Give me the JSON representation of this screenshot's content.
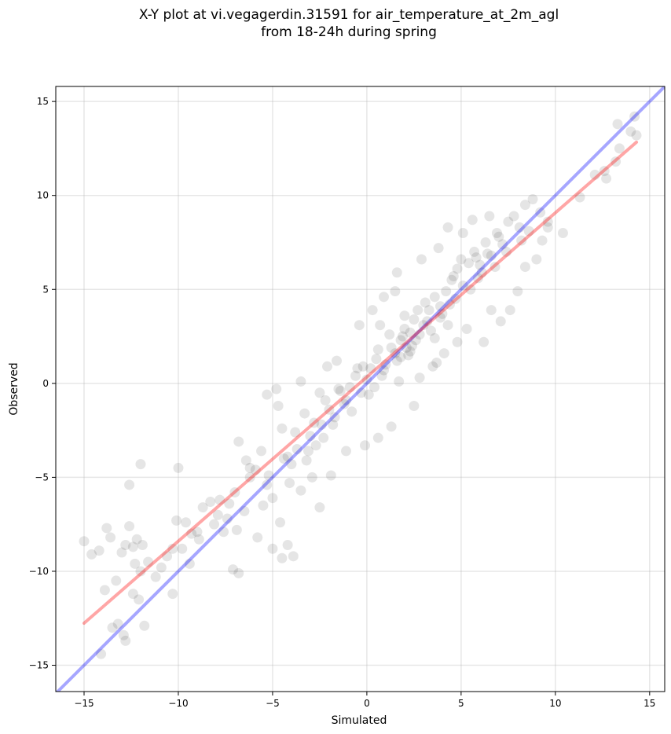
{
  "chart_data": {
    "type": "scatter",
    "title_line1": "X-Y plot at vi.vegagerdin.31591 for air_temperature_at_2m_agl",
    "title_line2": "from 18-24h during spring",
    "xlabel": "Simulated",
    "ylabel": "Observed",
    "xlim": [
      -16.5,
      15.8
    ],
    "ylim": [
      -16.4,
      15.8
    ],
    "xticks": [
      -15,
      -10,
      -5,
      0,
      5,
      10,
      15
    ],
    "yticks": [
      -15,
      -10,
      -5,
      0,
      5,
      10,
      15
    ],
    "xtick_labels": [
      "−15",
      "−10",
      "−5",
      "0",
      "5",
      "10",
      "15"
    ],
    "ytick_labels": [
      "−15",
      "−10",
      "−5",
      "0",
      "5",
      "10",
      "15"
    ],
    "grid": true,
    "point_color": "#000000",
    "points": [
      [
        -15.0,
        -8.4
      ],
      [
        -14.6,
        -9.1
      ],
      [
        -14.2,
        -8.9
      ],
      [
        -13.8,
        -7.7
      ],
      [
        -13.6,
        -8.2
      ],
      [
        -13.9,
        -11.0
      ],
      [
        -13.3,
        -10.5
      ],
      [
        -13.0,
        -9.0
      ],
      [
        -12.8,
        -8.6
      ],
      [
        -12.4,
        -8.7
      ],
      [
        -12.2,
        -8.3
      ],
      [
        -11.9,
        -8.6
      ],
      [
        -12.0,
        -4.3
      ],
      [
        -12.6,
        -5.4
      ],
      [
        -12.6,
        -7.6
      ],
      [
        -12.3,
        -9.6
      ],
      [
        -12.0,
        -10.0
      ],
      [
        -11.6,
        -9.5
      ],
      [
        -11.2,
        -10.3
      ],
      [
        -10.9,
        -9.8
      ],
      [
        -10.6,
        -9.2
      ],
      [
        -10.3,
        -8.8
      ],
      [
        -10.1,
        -7.3
      ],
      [
        -10.0,
        -4.5
      ],
      [
        -9.6,
        -7.4
      ],
      [
        -9.3,
        -8.0
      ],
      [
        -9.0,
        -7.9
      ],
      [
        -8.7,
        -6.6
      ],
      [
        -8.3,
        -6.3
      ],
      [
        -7.9,
        -7.0
      ],
      [
        -7.6,
        -7.9
      ],
      [
        -7.3,
        -6.4
      ],
      [
        -7.0,
        -5.8
      ],
      [
        -6.8,
        -3.1
      ],
      [
        -6.4,
        -4.1
      ],
      [
        -6.2,
        -5.0
      ],
      [
        -5.9,
        -4.6
      ],
      [
        -5.6,
        -3.6
      ],
      [
        -5.3,
        -5.4
      ],
      [
        -5.0,
        -6.1
      ],
      [
        -4.8,
        -0.3
      ],
      [
        -5.3,
        -0.6
      ],
      [
        -4.7,
        -1.2
      ],
      [
        -4.5,
        -2.4
      ],
      [
        -4.2,
        -3.9
      ],
      [
        -4.0,
        -4.3
      ],
      [
        -3.7,
        -3.5
      ],
      [
        -3.3,
        -1.6
      ],
      [
        -3.0,
        -2.8
      ],
      [
        -2.7,
        -3.3
      ],
      [
        -2.4,
        -2.2
      ],
      [
        -2.2,
        -0.9
      ],
      [
        -2.0,
        -1.4
      ],
      [
        -1.7,
        -1.8
      ],
      [
        -1.4,
        -0.4
      ],
      [
        -1.1,
        -0.9
      ],
      [
        -0.9,
        -0.2
      ],
      [
        -0.6,
        0.4
      ],
      [
        -0.3,
        -0.5
      ],
      [
        0.0,
        0.2
      ],
      [
        0.2,
        0.8
      ],
      [
        0.5,
        1.3
      ],
      [
        0.8,
        0.4
      ],
      [
        1.0,
        1.0
      ],
      [
        1.3,
        1.9
      ],
      [
        1.6,
        1.2
      ],
      [
        1.8,
        2.3
      ],
      [
        2.0,
        2.9
      ],
      [
        2.3,
        1.7
      ],
      [
        2.5,
        3.4
      ],
      [
        2.8,
        2.6
      ],
      [
        3.0,
        3.1
      ],
      [
        3.3,
        3.9
      ],
      [
        3.6,
        4.6
      ],
      [
        3.9,
        3.5
      ],
      [
        4.2,
        4.9
      ],
      [
        4.5,
        5.5
      ],
      [
        4.8,
        6.1
      ],
      [
        5.1,
        5.2
      ],
      [
        5.4,
        6.4
      ],
      [
        5.7,
        7.0
      ],
      [
        6.0,
        6.3
      ],
      [
        6.3,
        7.5
      ],
      [
        6.6,
        6.8
      ],
      [
        6.9,
        8.0
      ],
      [
        7.2,
        7.4
      ],
      [
        7.5,
        8.6
      ],
      [
        7.8,
        8.9
      ],
      [
        8.1,
        8.3
      ],
      [
        8.4,
        9.5
      ],
      [
        8.8,
        9.8
      ],
      [
        9.2,
        9.1
      ],
      [
        9.6,
        8.6
      ],
      [
        10.4,
        8.0
      ],
      [
        11.3,
        9.9
      ],
      [
        12.1,
        11.1
      ],
      [
        12.6,
        11.3
      ],
      [
        12.7,
        10.9
      ],
      [
        13.2,
        11.8
      ],
      [
        13.4,
        12.5
      ],
      [
        13.3,
        13.8
      ],
      [
        14.0,
        13.4
      ],
      [
        14.3,
        13.2
      ],
      [
        14.2,
        14.2
      ],
      [
        -13.2,
        -12.8
      ],
      [
        -12.9,
        -13.4
      ],
      [
        -13.5,
        -13.0
      ],
      [
        -14.1,
        -14.4
      ],
      [
        -12.8,
        -13.7
      ],
      [
        -11.8,
        -12.9
      ],
      [
        -12.4,
        -11.2
      ],
      [
        -12.1,
        -11.5
      ],
      [
        -10.3,
        -11.2
      ],
      [
        -5.8,
        -8.2
      ],
      [
        -5.0,
        -8.8
      ],
      [
        -4.5,
        -9.3
      ],
      [
        -3.9,
        -9.2
      ],
      [
        -4.2,
        -8.6
      ],
      [
        -7.1,
        -9.9
      ],
      [
        -6.8,
        -10.1
      ],
      [
        -9.4,
        -9.6
      ],
      [
        -4.6,
        -7.4
      ],
      [
        -3.5,
        -5.7
      ],
      [
        -2.9,
        -5.0
      ],
      [
        -2.5,
        -6.6
      ],
      [
        -1.9,
        -4.9
      ],
      [
        -1.1,
        -3.6
      ],
      [
        -0.1,
        -3.3
      ],
      [
        0.6,
        -2.9
      ],
      [
        1.3,
        -2.3
      ],
      [
        2.5,
        -1.2
      ],
      [
        1.7,
        0.1
      ],
      [
        2.8,
        0.3
      ],
      [
        3.5,
        0.9
      ],
      [
        4.1,
        1.6
      ],
      [
        4.8,
        2.2
      ],
      [
        5.3,
        2.9
      ],
      [
        6.2,
        2.2
      ],
      [
        6.6,
        3.9
      ],
      [
        7.1,
        3.3
      ],
      [
        7.6,
        3.9
      ],
      [
        8.0,
        4.9
      ],
      [
        8.4,
        6.2
      ],
      [
        9.0,
        6.6
      ],
      [
        9.3,
        7.6
      ],
      [
        9.6,
        8.3
      ],
      [
        1.6,
        5.9
      ],
      [
        0.9,
        4.6
      ],
      [
        0.3,
        3.9
      ],
      [
        -0.4,
        3.1
      ],
      [
        -1.6,
        1.2
      ],
      [
        -2.5,
        -0.5
      ],
      [
        -3.5,
        0.1
      ],
      [
        -2.1,
        0.9
      ],
      [
        4.3,
        8.3
      ],
      [
        5.1,
        8.0
      ],
      [
        5.6,
        8.7
      ],
      [
        6.5,
        8.9
      ],
      [
        3.8,
        7.2
      ],
      [
        2.9,
        6.6
      ],
      [
        1.5,
        4.9
      ],
      [
        0.7,
        3.1
      ],
      [
        3.7,
        1.1
      ],
      [
        2.2,
        1.5
      ],
      [
        -0.8,
        -1.5
      ],
      [
        -3.2,
        -4.1
      ],
      [
        -5.5,
        -6.5
      ],
      [
        -6.9,
        -7.8
      ],
      [
        -7.8,
        -6.2
      ],
      [
        -8.9,
        -8.3
      ],
      [
        -9.8,
        -8.8
      ],
      [
        -6.2,
        -4.5
      ],
      [
        -1.5,
        -0.3
      ],
      [
        1.9,
        2.5
      ],
      [
        2.4,
        2.0
      ],
      [
        3.1,
        4.3
      ],
      [
        4.4,
        4.2
      ],
      [
        5.9,
        5.6
      ],
      [
        7.4,
        7.0
      ],
      [
        0.4,
        -0.2
      ],
      [
        -0.5,
        0.8
      ],
      [
        1.2,
        2.6
      ],
      [
        2.7,
        3.9
      ],
      [
        3.4,
        2.8
      ],
      [
        4.6,
        5.7
      ],
      [
        6.8,
        6.2
      ],
      [
        -4.1,
        -5.3
      ],
      [
        -2.8,
        -2.1
      ],
      [
        -1.2,
        -1.1
      ],
      [
        0.9,
        0.7
      ],
      [
        2.1,
        1.9
      ],
      [
        3.9,
        4.1
      ],
      [
        5.5,
        5.0
      ],
      [
        7.0,
        7.8
      ],
      [
        8.6,
        8.1
      ],
      [
        -5.2,
        -4.9
      ],
      [
        -3.1,
        -3.6
      ],
      [
        -0.2,
        0.9
      ],
      [
        1.5,
        1.6
      ],
      [
        2.6,
        2.3
      ],
      [
        4.0,
        3.7
      ],
      [
        6.1,
        5.9
      ],
      [
        -6.5,
        -6.8
      ],
      [
        -4.4,
        -4.0
      ],
      [
        -2.3,
        -2.9
      ],
      [
        0.1,
        -0.6
      ],
      [
        1.8,
        1.4
      ],
      [
        3.2,
        3.3
      ],
      [
        4.7,
        4.5
      ],
      [
        6.4,
        6.9
      ],
      [
        8.2,
        7.6
      ],
      [
        -7.4,
        -7.2
      ],
      [
        -1.8,
        -2.2
      ],
      [
        2.0,
        3.6
      ],
      [
        3.6,
        2.4
      ],
      [
        5.0,
        6.6
      ],
      [
        -8.1,
        -7.5
      ],
      [
        -3.8,
        -2.6
      ],
      [
        0.6,
        1.8
      ],
      [
        2.3,
        2.7
      ],
      [
        4.3,
        3.1
      ],
      [
        5.8,
        6.7
      ]
    ]
  }
}
